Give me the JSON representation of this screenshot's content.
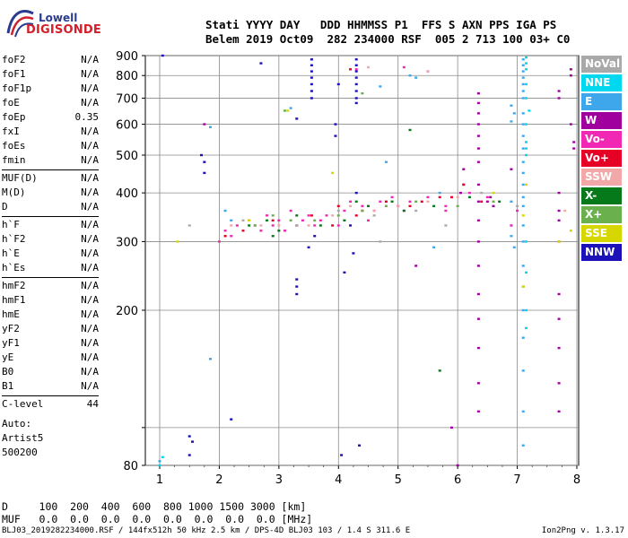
{
  "logo": {
    "line1": "Lowell",
    "line2": "DIGISONDE"
  },
  "header": {
    "line1": "Stati YYYY DAY   DDD HHMMSS P1  FFS S AXN PPS IGA PS",
    "line2": "Belem 2019 Oct09  282 234000 RSF  005 2 713 100 03+ C0"
  },
  "params": [
    {
      "name": "foF2",
      "value": "N/A"
    },
    {
      "name": "foF1",
      "value": "N/A"
    },
    {
      "name": "foF1p",
      "value": "N/A"
    },
    {
      "name": "foE",
      "value": "N/A"
    },
    {
      "name": "foEp",
      "value": "0.35"
    },
    {
      "name": "fxI",
      "value": "N/A"
    },
    {
      "name": "foEs",
      "value": "N/A"
    },
    {
      "name": "fmin",
      "value": "N/A"
    },
    {
      "name": "MUF(D)",
      "value": "N/A"
    },
    {
      "name": "M(D)",
      "value": "N/A"
    },
    {
      "name": "D",
      "value": "N/A"
    },
    {
      "name": "h`F",
      "value": "N/A"
    },
    {
      "name": "h`F2",
      "value": "N/A"
    },
    {
      "name": "h`E",
      "value": "N/A"
    },
    {
      "name": "h`Es",
      "value": "N/A"
    },
    {
      "name": "hmF2",
      "value": "N/A"
    },
    {
      "name": "hmF1",
      "value": "N/A"
    },
    {
      "name": "hmE",
      "value": "N/A"
    },
    {
      "name": "yF2",
      "value": "N/A"
    },
    {
      "name": "yF1",
      "value": "N/A"
    },
    {
      "name": "yE",
      "value": "N/A"
    },
    {
      "name": "B0",
      "value": "N/A"
    },
    {
      "name": "B1",
      "value": "N/A"
    },
    {
      "name": "C-level",
      "value": "44"
    }
  ],
  "auto": {
    "label": "Auto:",
    "artist": "Artist5",
    "code": "500200"
  },
  "legend": [
    {
      "label": "NoVal",
      "color": "#a9a9a9"
    },
    {
      "label": "NNE",
      "color": "#00d8f0"
    },
    {
      "label": "E",
      "color": "#3ea6ea"
    },
    {
      "label": "W",
      "color": "#a0009e"
    },
    {
      "label": "Vo-",
      "color": "#f028b4"
    },
    {
      "label": "Vo+",
      "color": "#e60026"
    },
    {
      "label": "SSW",
      "color": "#f2a8a8"
    },
    {
      "label": "X-",
      "color": "#067a1a"
    },
    {
      "label": "X+",
      "color": "#6ab04c"
    },
    {
      "label": "SSE",
      "color": "#d6d600"
    },
    {
      "label": "NNW",
      "color": "#1c10b8"
    }
  ],
  "dtable": {
    "line1": "D     100  200  400  600  800 1000 1500 3000 [km]",
    "line2": "MUF   0.0  0.0  0.0  0.0  0.0  0.0  0.0  0.0 [MHz]"
  },
  "footer": {
    "text": "BLJ03_2019282234000.RSF / 144fx512h 50 kHz 2.5 km / DPS-4D BLJ03 103 / 1.4 S 311.6 E",
    "version": "Ion2Png v. 1.3.17"
  },
  "chart_data": {
    "type": "scatter",
    "title": "",
    "xlabel": "",
    "ylabel": "",
    "xlim": [
      1,
      8
    ],
    "ylim": [
      80,
      900
    ],
    "x_scale": "linear",
    "y_scale": "log",
    "x_ticks": [
      "1",
      "2",
      "3",
      "4",
      "5",
      "6",
      "7",
      "8"
    ],
    "y_ticks": [
      "80",
      "100",
      "200",
      "300",
      "400",
      "500",
      "600",
      "700",
      "800",
      "900"
    ],
    "grid": true,
    "legend_position": "right",
    "series": [
      {
        "name": "NNW",
        "color": "#1c10b8",
        "points": [
          [
            1.05,
            900
          ],
          [
            1.5,
            85
          ],
          [
            1.5,
            95
          ],
          [
            1.55,
            92
          ],
          [
            1.7,
            500
          ],
          [
            1.75,
            480
          ],
          [
            1.75,
            450
          ],
          [
            3.3,
            220
          ],
          [
            3.3,
            230
          ],
          [
            3.3,
            240
          ],
          [
            3.55,
            880
          ],
          [
            3.55,
            850
          ],
          [
            3.55,
            820
          ],
          [
            3.55,
            790
          ],
          [
            3.55,
            760
          ],
          [
            3.55,
            730
          ],
          [
            3.55,
            700
          ],
          [
            3.5,
            290
          ],
          [
            3.95,
            560
          ],
          [
            3.95,
            600
          ],
          [
            4.0,
            760
          ],
          [
            4.3,
            880
          ],
          [
            4.3,
            850
          ],
          [
            4.3,
            820
          ],
          [
            4.3,
            790
          ],
          [
            4.3,
            760
          ],
          [
            4.3,
            730
          ],
          [
            4.3,
            700
          ],
          [
            4.3,
            680
          ],
          [
            4.3,
            400
          ],
          [
            4.05,
            85
          ],
          [
            4.35,
            90
          ],
          [
            2.7,
            860
          ],
          [
            3.3,
            620
          ],
          [
            2.2,
            105
          ],
          [
            3.6,
            310
          ],
          [
            4.2,
            330
          ],
          [
            4.25,
            280
          ],
          [
            4.1,
            250
          ]
        ]
      },
      {
        "name": "W",
        "color": "#a0009e",
        "points": [
          [
            6.35,
            720
          ],
          [
            6.35,
            680
          ],
          [
            6.35,
            640
          ],
          [
            6.35,
            600
          ],
          [
            6.35,
            560
          ],
          [
            6.35,
            520
          ],
          [
            6.35,
            480
          ],
          [
            6.35,
            420
          ],
          [
            6.35,
            380
          ],
          [
            6.35,
            340
          ],
          [
            6.35,
            300
          ],
          [
            6.35,
            260
          ],
          [
            6.35,
            220
          ],
          [
            6.35,
            190
          ],
          [
            6.35,
            160
          ],
          [
            6.35,
            130
          ],
          [
            6.35,
            110
          ],
          [
            7.7,
            220
          ],
          [
            7.7,
            190
          ],
          [
            7.7,
            160
          ],
          [
            7.7,
            130
          ],
          [
            7.7,
            110
          ],
          [
            7.7,
            300
          ],
          [
            7.7,
            340
          ],
          [
            7.7,
            360
          ],
          [
            7.7,
            400
          ],
          [
            7.7,
            700
          ],
          [
            7.7,
            730
          ],
          [
            7.9,
            800
          ],
          [
            7.9,
            830
          ],
          [
            7.9,
            600
          ],
          [
            7.95,
            540
          ],
          [
            7.95,
            520
          ],
          [
            6.1,
            460
          ],
          [
            6.1,
            420
          ],
          [
            6.05,
            400
          ],
          [
            6.5,
            380
          ],
          [
            6.55,
            390
          ],
          [
            6.6,
            370
          ],
          [
            5.3,
            260
          ],
          [
            5.9,
            100
          ],
          [
            6.0,
            80
          ],
          [
            6.9,
            460
          ],
          [
            1.75,
            600
          ]
        ]
      },
      {
        "name": "E",
        "color": "#3ea6ea",
        "points": [
          [
            7.1,
            880
          ],
          [
            7.1,
            850
          ],
          [
            7.1,
            820
          ],
          [
            7.1,
            790
          ],
          [
            7.1,
            760
          ],
          [
            7.1,
            730
          ],
          [
            7.1,
            700
          ],
          [
            7.1,
            640
          ],
          [
            7.1,
            600
          ],
          [
            7.1,
            560
          ],
          [
            7.1,
            520
          ],
          [
            7.1,
            480
          ],
          [
            7.1,
            450
          ],
          [
            7.1,
            420
          ],
          [
            7.1,
            390
          ],
          [
            7.1,
            370
          ],
          [
            7.1,
            330
          ],
          [
            7.1,
            300
          ],
          [
            7.1,
            260
          ],
          [
            7.1,
            230
          ],
          [
            7.1,
            200
          ],
          [
            7.1,
            170
          ],
          [
            7.1,
            140
          ],
          [
            7.1,
            110
          ],
          [
            7.1,
            90
          ],
          [
            6.9,
            670
          ],
          [
            6.95,
            640
          ],
          [
            6.9,
            610
          ],
          [
            6.9,
            330
          ],
          [
            6.9,
            310
          ],
          [
            6.95,
            290
          ],
          [
            6.9,
            380
          ],
          [
            1.0,
            82
          ],
          [
            1.85,
            150
          ],
          [
            1.85,
            590
          ],
          [
            4.7,
            750
          ],
          [
            5.2,
            800
          ],
          [
            4.8,
            480
          ],
          [
            5.6,
            290
          ],
          [
            2.1,
            360
          ],
          [
            2.2,
            340
          ],
          [
            3.2,
            660
          ],
          [
            5.3,
            790
          ],
          [
            5.7,
            400
          ]
        ]
      },
      {
        "name": "NNE",
        "color": "#00d8f0",
        "points": [
          [
            7.15,
            890
          ],
          [
            7.15,
            860
          ],
          [
            7.15,
            830
          ],
          [
            7.15,
            760
          ],
          [
            7.15,
            700
          ],
          [
            7.2,
            650
          ],
          [
            7.15,
            600
          ],
          [
            7.15,
            540
          ],
          [
            7.15,
            520
          ],
          [
            7.15,
            500
          ],
          [
            7.15,
            300
          ],
          [
            7.15,
            250
          ],
          [
            1.0,
            80
          ],
          [
            1.05,
            84
          ],
          [
            7.15,
            180
          ],
          [
            7.15,
            200
          ]
        ]
      },
      {
        "name": "Vo-",
        "color": "#f028b4",
        "points": [
          [
            2.0,
            300
          ],
          [
            2.1,
            320
          ],
          [
            2.2,
            310
          ],
          [
            2.3,
            330
          ],
          [
            2.5,
            340
          ],
          [
            2.6,
            330
          ],
          [
            2.7,
            320
          ],
          [
            2.8,
            350
          ],
          [
            2.9,
            330
          ],
          [
            3.0,
            340
          ],
          [
            3.1,
            320
          ],
          [
            3.2,
            360
          ],
          [
            3.4,
            340
          ],
          [
            3.5,
            350
          ],
          [
            3.6,
            330
          ],
          [
            3.7,
            340
          ],
          [
            3.8,
            350
          ],
          [
            4.0,
            330
          ],
          [
            4.1,
            360
          ],
          [
            4.2,
            380
          ],
          [
            4.4,
            370
          ],
          [
            4.6,
            360
          ],
          [
            4.7,
            380
          ],
          [
            4.9,
            390
          ],
          [
            5.0,
            370
          ],
          [
            5.1,
            360
          ],
          [
            5.2,
            380
          ],
          [
            5.5,
            390
          ],
          [
            5.8,
            370
          ],
          [
            6.2,
            400
          ],
          [
            6.5,
            390
          ],
          [
            6.9,
            330
          ],
          [
            7.0,
            360
          ],
          [
            4.3,
            830
          ],
          [
            5.1,
            840
          ],
          [
            5.5,
            820
          ],
          [
            5.8,
            360
          ],
          [
            4.5,
            340
          ]
        ]
      },
      {
        "name": "Vo+",
        "color": "#e60026",
        "points": [
          [
            2.1,
            310
          ],
          [
            2.4,
            320
          ],
          [
            2.9,
            340
          ],
          [
            3.3,
            330
          ],
          [
            3.55,
            350
          ],
          [
            3.9,
            330
          ],
          [
            4.0,
            370
          ],
          [
            4.3,
            350
          ],
          [
            4.4,
            360
          ],
          [
            4.8,
            380
          ],
          [
            5.2,
            370
          ],
          [
            5.4,
            380
          ],
          [
            5.9,
            390
          ],
          [
            6.1,
            420
          ],
          [
            6.4,
            380
          ],
          [
            4.2,
            830
          ],
          [
            5.7,
            390
          ]
        ]
      },
      {
        "name": "X-",
        "color": "#067a1a",
        "points": [
          [
            2.5,
            330
          ],
          [
            2.8,
            340
          ],
          [
            3.0,
            320
          ],
          [
            3.3,
            350
          ],
          [
            3.7,
            330
          ],
          [
            4.1,
            340
          ],
          [
            4.3,
            380
          ],
          [
            4.5,
            370
          ],
          [
            4.9,
            380
          ],
          [
            5.1,
            360
          ],
          [
            5.6,
            370
          ],
          [
            6.2,
            390
          ],
          [
            6.7,
            380
          ],
          [
            5.2,
            580
          ],
          [
            5.7,
            140
          ],
          [
            2.9,
            310
          ]
        ]
      },
      {
        "name": "X+",
        "color": "#6ab04c",
        "points": [
          [
            2.6,
            330
          ],
          [
            2.9,
            350
          ],
          [
            3.2,
            340
          ],
          [
            3.6,
            340
          ],
          [
            4.0,
            350
          ],
          [
            4.4,
            360
          ],
          [
            4.8,
            370
          ],
          [
            5.3,
            380
          ],
          [
            6.0,
            370
          ],
          [
            4.4,
            720
          ],
          [
            6.6,
            380
          ],
          [
            3.1,
            650
          ]
        ]
      },
      {
        "name": "SSW",
        "color": "#f2a8a8",
        "points": [
          [
            2.2,
            330
          ],
          [
            2.7,
            330
          ],
          [
            3.0,
            330
          ],
          [
            3.5,
            330
          ],
          [
            3.9,
            350
          ],
          [
            4.2,
            370
          ],
          [
            4.6,
            360
          ],
          [
            5.0,
            370
          ],
          [
            5.5,
            380
          ],
          [
            6.0,
            390
          ],
          [
            5.5,
            820
          ],
          [
            4.5,
            840
          ],
          [
            7.8,
            360
          ]
        ]
      },
      {
        "name": "SSE",
        "color": "#d6d600",
        "points": [
          [
            1.3,
            300
          ],
          [
            3.15,
            650
          ],
          [
            3.9,
            450
          ],
          [
            7.1,
            230
          ],
          [
            7.1,
            350
          ],
          [
            7.15,
            420
          ],
          [
            7.7,
            300
          ],
          [
            7.9,
            320
          ],
          [
            6.6,
            400
          ],
          [
            2.5,
            340
          ]
        ]
      },
      {
        "name": "NoVal",
        "color": "#a9a9a9",
        "points": [
          [
            2.4,
            340
          ],
          [
            3.3,
            330
          ],
          [
            4.0,
            360
          ],
          [
            4.6,
            350
          ],
          [
            5.3,
            360
          ],
          [
            5.8,
            330
          ],
          [
            6.4,
            400
          ],
          [
            7.0,
            370
          ],
          [
            1.5,
            330
          ],
          [
            4.7,
            300
          ]
        ]
      }
    ]
  }
}
